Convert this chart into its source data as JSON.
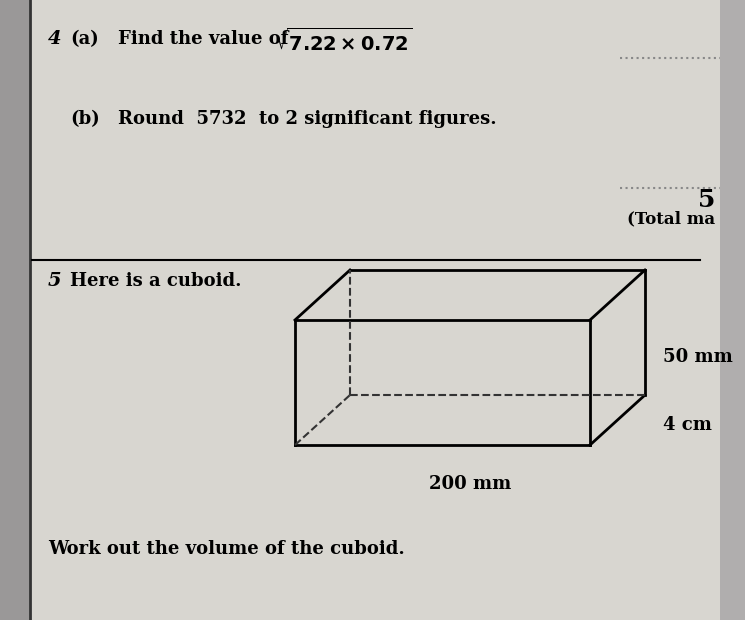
{
  "bg_color": "#b0aeae",
  "paper_color": "#d8d6d0",
  "text_color": "#000000",
  "q4_label": "4",
  "qa_label": "(a)",
  "qa_text": "Find the value of",
  "qb_label": "(b)",
  "qb_text": "Round  5732  to 2 significant figures.",
  "marks_label": "5",
  "total_label": "(Total ma",
  "q5_label": "5",
  "q5_text": "Here is a cuboid.",
  "dim1_label": "50 mm",
  "dim2_label": "4 cm",
  "dim3_label": "200 mm",
  "work_text": "Work out the volume of the cuboid.",
  "left_border_color": "#555555",
  "line_color": "#000000",
  "dotted_color": "#888888"
}
